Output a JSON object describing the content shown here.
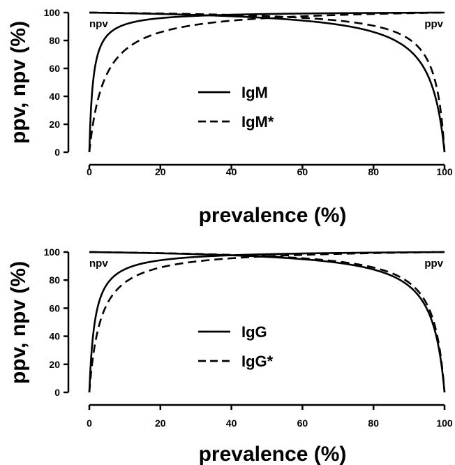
{
  "chart_data": [
    {
      "type": "line",
      "title": "",
      "xlabel": "prevalence (%)",
      "ylabel": "ppv, npv (%)",
      "xlim": [
        0,
        100
      ],
      "ylim": [
        0,
        100
      ],
      "xticks": [
        0,
        20,
        40,
        60,
        80,
        100
      ],
      "yticks": [
        0,
        20,
        40,
        60,
        80,
        100
      ],
      "grid": false,
      "legend_position": "center",
      "annotations": [
        {
          "text": "npv",
          "position": "top-left"
        },
        {
          "text": "ppv",
          "position": "top-right"
        }
      ],
      "series": [
        {
          "name": "IgM",
          "style": "solid",
          "sensitivity": 0.96,
          "specificity": 0.99
        },
        {
          "name": "IgM*",
          "style": "dashed",
          "sensitivity": 0.975,
          "specificity": 0.96
        }
      ]
    },
    {
      "type": "line",
      "title": "",
      "xlabel": "prevalence (%)",
      "ylabel": "ppv, npv (%)",
      "xlim": [
        0,
        100
      ],
      "ylim": [
        0,
        100
      ],
      "xticks": [
        0,
        20,
        40,
        60,
        80,
        100
      ],
      "yticks": [
        0,
        20,
        40,
        60,
        80,
        100
      ],
      "grid": false,
      "legend_position": "center",
      "annotations": [
        {
          "text": "npv",
          "position": "top-left"
        },
        {
          "text": "ppv",
          "position": "top-right"
        }
      ],
      "series": [
        {
          "name": "IgG",
          "style": "solid",
          "sensitivity": 0.965,
          "specificity": 0.985
        },
        {
          "name": "IgG*",
          "style": "dashed",
          "sensitivity": 0.97,
          "specificity": 0.97
        }
      ]
    }
  ]
}
